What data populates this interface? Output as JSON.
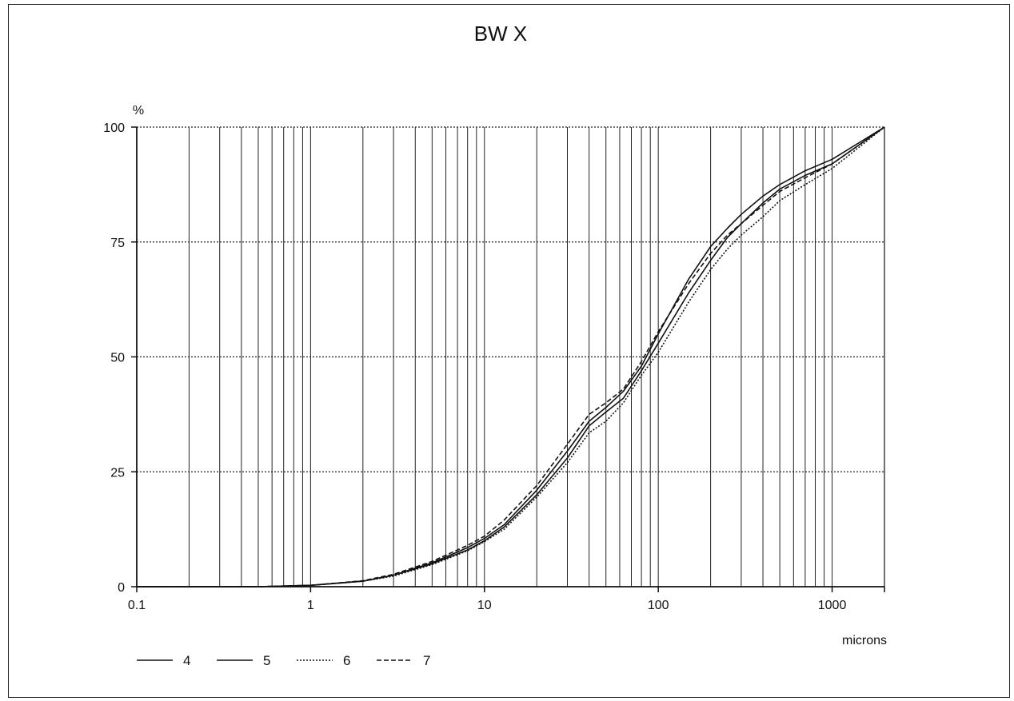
{
  "chart_data": {
    "type": "line",
    "title": "BW X",
    "xlabel": "microns",
    "ylabel": "%",
    "x_scale": "log",
    "xlim": [
      0.1,
      2000
    ],
    "ylim": [
      0,
      100
    ],
    "x_ticks": [
      0.1,
      1,
      10,
      100,
      1000
    ],
    "x_tick_labels": [
      "0.1",
      "1",
      "10",
      "100",
      "1000"
    ],
    "y_ticks": [
      0,
      25,
      50,
      75,
      100
    ],
    "y_tick_labels": [
      "0",
      "25",
      "50",
      "75",
      "100"
    ],
    "grid": true,
    "legend_position": "bottom-left",
    "series": [
      {
        "name": "4",
        "style": "solid",
        "x": [
          0.1,
          0.5,
          1,
          2,
          3,
          5,
          8,
          10,
          13,
          20,
          30,
          40,
          50,
          63,
          80,
          100,
          150,
          200,
          250,
          300,
          400,
          500,
          700,
          1000,
          2000
        ],
        "y": [
          0,
          0,
          0.3,
          1.2,
          2.5,
          5,
          8,
          10,
          13,
          20,
          28,
          35,
          38,
          41,
          47,
          53,
          64,
          71,
          76,
          79,
          83.5,
          86.5,
          89.5,
          92,
          100
        ]
      },
      {
        "name": "5",
        "style": "solid",
        "x": [
          0.1,
          0.5,
          1,
          2,
          3,
          5,
          8,
          10,
          13,
          20,
          30,
          40,
          50,
          63,
          80,
          100,
          150,
          200,
          250,
          300,
          400,
          500,
          700,
          1000,
          2000
        ],
        "y": [
          0,
          0,
          0.3,
          1.2,
          2.5,
          5.2,
          8.5,
          10.5,
          13.5,
          21,
          29.5,
          36,
          39,
          42.5,
          48,
          55,
          67,
          74,
          78,
          81,
          85,
          87.5,
          90.5,
          93,
          100
        ]
      },
      {
        "name": "6",
        "style": "dotted",
        "x": [
          0.1,
          0.5,
          1,
          2,
          3,
          5,
          8,
          10,
          13,
          20,
          30,
          40,
          50,
          63,
          80,
          100,
          150,
          200,
          250,
          300,
          400,
          500,
          700,
          1000,
          2000
        ],
        "y": [
          0,
          0,
          0.3,
          1.2,
          2.3,
          4.8,
          7.8,
          9.8,
          12.5,
          19.5,
          27,
          33.5,
          36,
          40,
          46,
          51,
          62,
          69,
          73.5,
          76.5,
          80.5,
          84,
          87.5,
          91,
          100
        ]
      },
      {
        "name": "7",
        "style": "dashed",
        "x": [
          0.1,
          0.5,
          1,
          2,
          3,
          5,
          8,
          10,
          13,
          20,
          30,
          40,
          50,
          63,
          80,
          100,
          150,
          200,
          250,
          300,
          400,
          500,
          700,
          1000,
          2000
        ],
        "y": [
          0,
          0,
          0.3,
          1.3,
          2.7,
          5.5,
          9,
          11,
          14.5,
          22,
          31,
          37.5,
          40,
          43,
          49,
          55.5,
          66,
          72.5,
          76.5,
          79,
          83,
          86,
          89,
          92,
          100
        ]
      }
    ]
  }
}
